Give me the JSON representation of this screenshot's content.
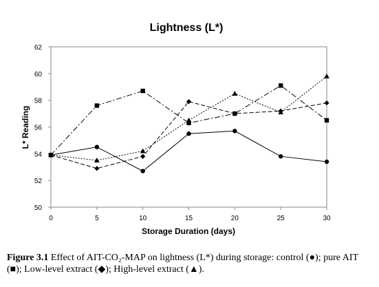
{
  "chart_data": {
    "type": "line",
    "title": "Lightness (L*)",
    "xlabel": "Storage Duration (days)",
    "ylabel": "L* Reading",
    "x": [
      0,
      5,
      10,
      15,
      20,
      25,
      30
    ],
    "xlim": [
      0,
      30
    ],
    "ylim": [
      50,
      62
    ],
    "xticks": [
      "0",
      "5",
      "10",
      "15",
      "20",
      "25",
      "30"
    ],
    "yticks": [
      "50",
      "52",
      "54",
      "56",
      "58",
      "60",
      "62"
    ],
    "grid": false,
    "legend": "none",
    "series": [
      {
        "marker": "circle",
        "line_style": "solid",
        "values": [
          53.9,
          54.5,
          52.7,
          55.5,
          55.7,
          53.8,
          53.4
        ]
      },
      {
        "marker": "square",
        "line_style": "dash-dot",
        "values": [
          53.9,
          57.6,
          58.7,
          56.3,
          57.0,
          59.1,
          56.5
        ]
      },
      {
        "marker": "diamond",
        "line_style": "dashed",
        "values": [
          53.9,
          52.9,
          53.8,
          57.9,
          57.0,
          57.2,
          57.8
        ]
      },
      {
        "marker": "triangle",
        "line_style": "dotted",
        "values": [
          53.9,
          53.5,
          54.2,
          56.5,
          58.5,
          57.1,
          59.8
        ]
      }
    ]
  },
  "caption": {
    "label": "Figure 3.1",
    "text": " Effect of AIT-CO₂-MAP on lightness (L*) during storage: control (●); pure AIT (■); Low-level extract (◆); High-level extract (▲)."
  }
}
